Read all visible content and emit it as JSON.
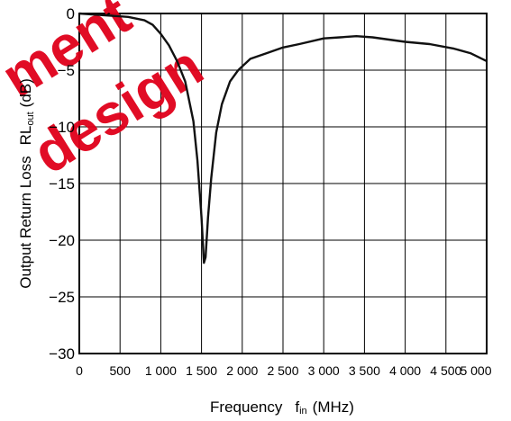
{
  "chart_data": {
    "type": "line",
    "xlabel_main": "Frequency",
    "xlabel_symbol": "f",
    "xlabel_sub": "in",
    "xlabel_unit": "(MHz)",
    "ylabel_main": "Output Return Loss",
    "ylabel_symbol": "RL",
    "ylabel_sub": "out",
    "ylabel_unit": "(dB)",
    "xlim": [
      0,
      5000
    ],
    "ylim": [
      -30,
      0
    ],
    "grid": true,
    "x_ticks": [
      "0",
      "500",
      "1 000",
      "1 500",
      "2 000",
      "2 500",
      "3 000",
      "3 500",
      "4 000",
      "4 500",
      "5 000"
    ],
    "y_ticks": [
      "0",
      "−5",
      "−10",
      "−15",
      "−20",
      "−25",
      "−30"
    ],
    "series": [
      {
        "x": [
          0,
          200,
          400,
          600,
          800,
          900,
          1000,
          1100,
          1200,
          1300,
          1400,
          1450,
          1500,
          1530,
          1550,
          1580,
          1620,
          1680,
          1750,
          1850,
          1950,
          2100,
          2300,
          2500,
          2700,
          3000,
          3200,
          3400,
          3600,
          3800,
          4000,
          4300,
          4600,
          4800,
          5000
        ],
        "y": [
          0,
          -0.1,
          -0.2,
          -0.3,
          -0.6,
          -1.0,
          -1.8,
          -2.8,
          -4.2,
          -6.0,
          -9.5,
          -13.0,
          -18.0,
          -22.0,
          -21.5,
          -18.0,
          -14.5,
          -10.5,
          -8.0,
          -6.0,
          -5.0,
          -4.0,
          -3.5,
          -3.0,
          -2.7,
          -2.2,
          -2.1,
          -2.0,
          -2.1,
          -2.3,
          -2.5,
          -2.7,
          -3.1,
          -3.5,
          -4.2
        ]
      }
    ]
  },
  "watermark": {
    "line1": "ment",
    "line2": "design",
    "color": "#e0001a"
  }
}
